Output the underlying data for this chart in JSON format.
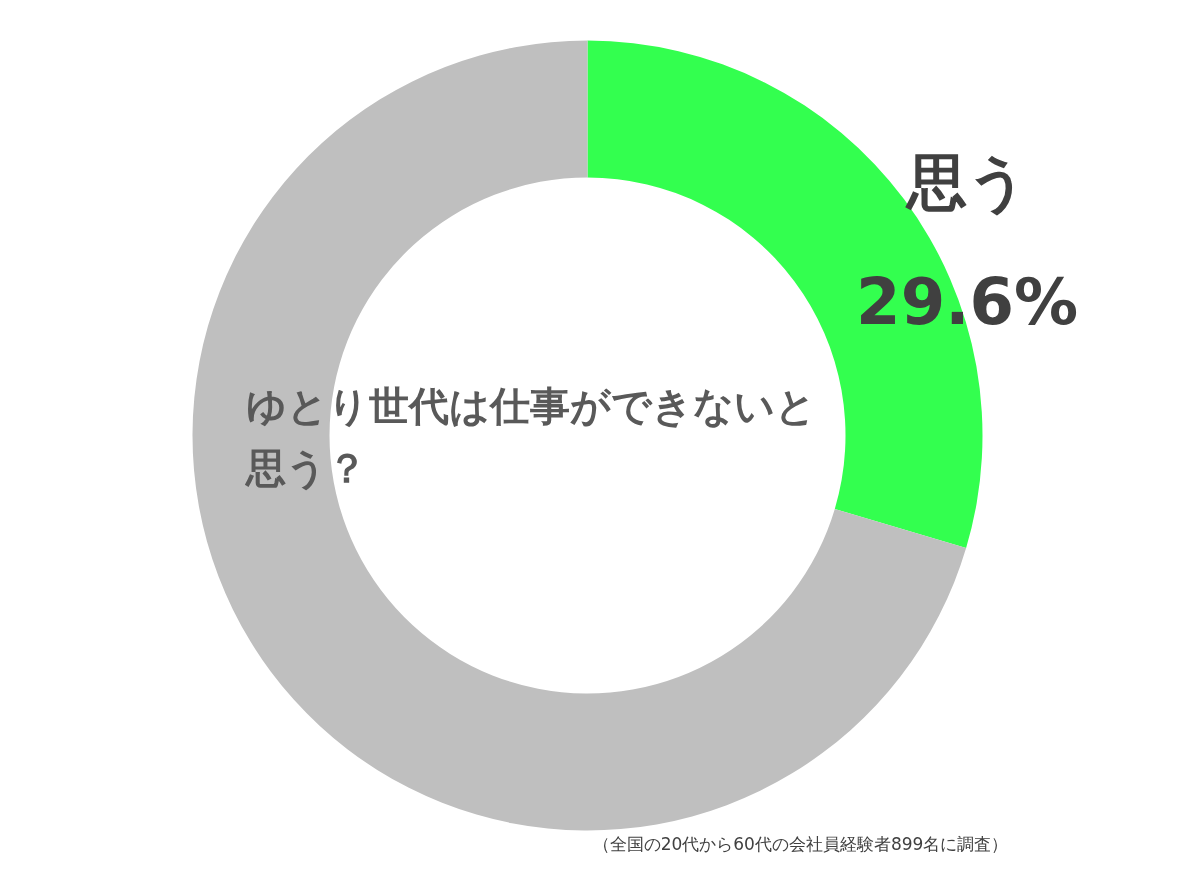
{
  "chart_data": {
    "type": "donut",
    "title": "ゆとり世代は仕事ができないと思う？",
    "categories": [
      "思う",
      null
    ],
    "values": [
      29.6,
      70.4
    ],
    "colors": [
      "#33ff4f",
      "#bfbfbf"
    ],
    "value_labels": [
      "29.6%",
      null
    ],
    "legend": false,
    "annotations": [
      "（全国の20代から60代の会社員経験者899名に調査）"
    ]
  }
}
